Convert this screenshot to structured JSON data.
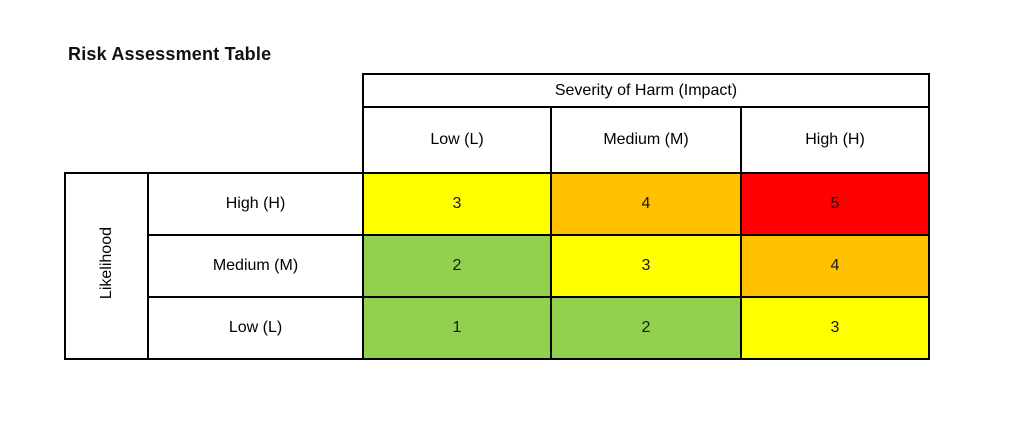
{
  "page": {
    "title": "Risk Assessment Table",
    "background": "#ffffff"
  },
  "table": {
    "column_group_header": "Severity of Harm (Impact)",
    "row_group_header": "Likelihood",
    "columns": [
      "Low (L)",
      "Medium (M)",
      "High (H)"
    ],
    "rows": [
      {
        "label": "High (H)",
        "cells": [
          {
            "value": "3",
            "color": "#ffff00"
          },
          {
            "value": "4",
            "color": "#ffc000"
          },
          {
            "value": "5",
            "color": "#ff0000"
          }
        ]
      },
      {
        "label": "Medium (M)",
        "cells": [
          {
            "value": "2",
            "color": "#92d050"
          },
          {
            "value": "3",
            "color": "#ffff00"
          },
          {
            "value": "4",
            "color": "#ffc000"
          }
        ]
      },
      {
        "label": "Low (L)",
        "cells": [
          {
            "value": "1",
            "color": "#92d050"
          },
          {
            "value": "2",
            "color": "#92d050"
          },
          {
            "value": "3",
            "color": "#ffff00"
          }
        ]
      }
    ],
    "border_color": "#000000"
  },
  "colors": {
    "risk_low_green": "#92d050",
    "risk_medium_yellow": "#ffff00",
    "risk_high_orange": "#ffc000",
    "risk_critical_red": "#ff0000",
    "border": "#000000",
    "text": "#000000"
  },
  "chart_data": {
    "type": "heatmap",
    "title": "Risk Assessment Table",
    "x_axis_label": "Severity of Harm (Impact)",
    "y_axis_label": "Likelihood",
    "x_categories": [
      "Low (L)",
      "Medium (M)",
      "High (H)"
    ],
    "y_categories": [
      "High (H)",
      "Medium (M)",
      "Low (L)"
    ],
    "values": [
      [
        3,
        4,
        5
      ],
      [
        2,
        3,
        4
      ],
      [
        1,
        2,
        3
      ]
    ],
    "cell_colors": [
      [
        "#ffff00",
        "#ffc000",
        "#ff0000"
      ],
      [
        "#92d050",
        "#ffff00",
        "#ffc000"
      ],
      [
        "#92d050",
        "#92d050",
        "#ffff00"
      ]
    ],
    "grid": true,
    "legend": false
  }
}
